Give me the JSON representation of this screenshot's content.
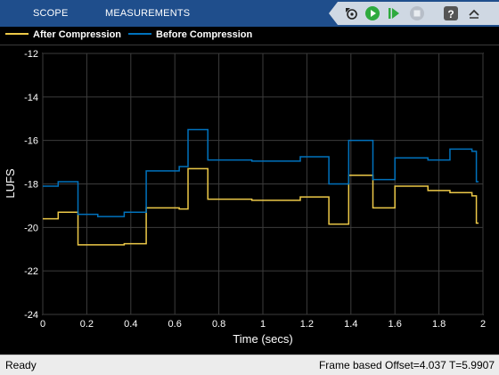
{
  "toolstrip": {
    "tabs": [
      {
        "label": "SCOPE"
      },
      {
        "label": "MEASUREMENTS"
      }
    ],
    "buttons": [
      {
        "icon": "step-back-icon"
      },
      {
        "icon": "run-icon"
      },
      {
        "icon": "step-forward-icon"
      },
      {
        "icon": "stop-icon"
      },
      {
        "icon": "help-icon"
      },
      {
        "icon": "collapse-icon"
      }
    ]
  },
  "chart_data": {
    "type": "line",
    "xlabel": "Time (secs)",
    "ylabel": "LUFS",
    "xlim": [
      0,
      2
    ],
    "ylim": [
      -24,
      -12
    ],
    "xticks": [
      "0",
      "0.2",
      "0.4",
      "0.6",
      "0.8",
      "1",
      "1.2",
      "1.4",
      "1.6",
      "1.8",
      "2"
    ],
    "yticks": [
      "-12",
      "-14",
      "-16",
      "-18",
      "-20",
      "-22",
      "-24"
    ],
    "grid": true,
    "legend_position": "top-left",
    "series": [
      {
        "name": "After Compression",
        "color": "#edc948",
        "step_x": [
          0,
          0.05,
          0.07,
          0.16,
          0.25,
          0.35,
          0.37,
          0.45,
          0.47,
          0.55,
          0.62,
          0.66,
          0.75,
          0.85,
          0.95,
          1.05,
          1.17,
          1.25,
          1.3,
          1.35,
          1.39,
          1.45,
          1.5,
          1.55,
          1.6,
          1.7,
          1.75,
          1.8,
          1.85,
          1.9,
          1.95,
          1.97
        ],
        "step_y": [
          -19.6,
          -19.6,
          -19.3,
          -20.8,
          -20.8,
          -20.8,
          -20.75,
          -20.75,
          -19.1,
          -19.1,
          -19.15,
          -17.3,
          -18.7,
          -18.7,
          -18.75,
          -18.75,
          -18.6,
          -18.6,
          -19.85,
          -19.85,
          -17.6,
          -17.6,
          -19.1,
          -19.1,
          -18.1,
          -18.1,
          -18.3,
          -18.3,
          -18.4,
          -18.4,
          -18.55,
          -19.8
        ],
        "x_end": 1.98
      },
      {
        "name": "Before Compression",
        "color": "#0072bd",
        "step_x": [
          0,
          0.05,
          0.07,
          0.16,
          0.25,
          0.35,
          0.37,
          0.45,
          0.47,
          0.55,
          0.62,
          0.66,
          0.75,
          0.85,
          0.95,
          1.05,
          1.17,
          1.25,
          1.3,
          1.35,
          1.39,
          1.45,
          1.5,
          1.55,
          1.6,
          1.7,
          1.75,
          1.8,
          1.85,
          1.9,
          1.95,
          1.97
        ],
        "step_y": [
          -18.1,
          -18.1,
          -17.9,
          -19.4,
          -19.5,
          -19.5,
          -19.3,
          -19.3,
          -17.4,
          -17.4,
          -17.2,
          -15.5,
          -16.9,
          -16.9,
          -16.95,
          -16.95,
          -16.75,
          -16.75,
          -18.0,
          -18.0,
          -16.0,
          -16.0,
          -17.8,
          -17.8,
          -16.8,
          -16.8,
          -16.9,
          -16.9,
          -16.4,
          -16.4,
          -16.5,
          -17.9
        ],
        "x_end": 1.98
      }
    ]
  },
  "status": {
    "left": "Ready",
    "right": "Frame based  Offset=4.037  T=5.9907"
  }
}
